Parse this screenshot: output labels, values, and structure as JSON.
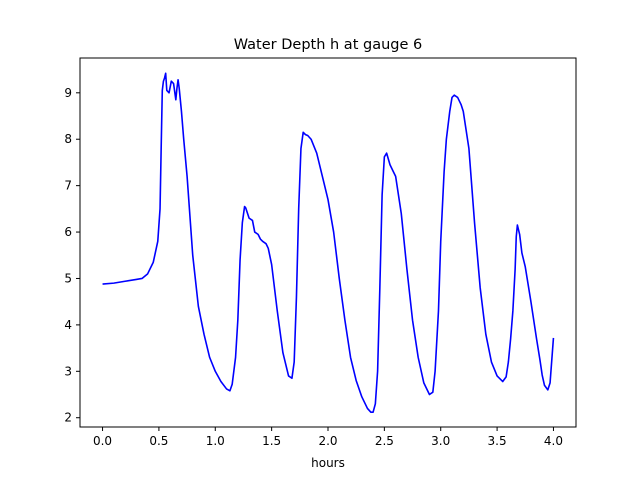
{
  "chart_data": {
    "type": "line",
    "title": "Water Depth h at gauge 6",
    "xlabel": "hours",
    "ylabel": "",
    "xlim": [
      -0.2,
      4.2
    ],
    "ylim": [
      1.8,
      9.75
    ],
    "xticks": [
      0.0,
      0.5,
      1.0,
      1.5,
      2.0,
      2.5,
      3.0,
      3.5,
      4.0
    ],
    "xtick_labels": [
      "0.0",
      "0.5",
      "1.0",
      "1.5",
      "2.0",
      "2.5",
      "3.0",
      "3.5",
      "4.0"
    ],
    "yticks": [
      2,
      3,
      4,
      5,
      6,
      7,
      8,
      9
    ],
    "ytick_labels": [
      "2",
      "3",
      "4",
      "5",
      "6",
      "7",
      "8",
      "9"
    ],
    "grid": false,
    "series": [
      {
        "color": "#0000ff",
        "x": [
          0.0,
          0.1,
          0.2,
          0.3,
          0.35,
          0.4,
          0.45,
          0.49,
          0.51,
          0.52,
          0.53,
          0.54,
          0.55,
          0.56,
          0.57,
          0.59,
          0.61,
          0.63,
          0.65,
          0.66,
          0.67,
          0.68,
          0.7,
          0.72,
          0.75,
          0.8,
          0.85,
          0.9,
          0.95,
          1.0,
          1.05,
          1.1,
          1.13,
          1.15,
          1.18,
          1.2,
          1.22,
          1.24,
          1.26,
          1.27,
          1.3,
          1.33,
          1.35,
          1.38,
          1.4,
          1.42,
          1.45,
          1.47,
          1.5,
          1.55,
          1.6,
          1.65,
          1.68,
          1.7,
          1.72,
          1.74,
          1.76,
          1.78,
          1.8,
          1.82,
          1.85,
          1.9,
          1.95,
          2.0,
          2.05,
          2.1,
          2.15,
          2.2,
          2.25,
          2.3,
          2.35,
          2.38,
          2.4,
          2.42,
          2.44,
          2.46,
          2.48,
          2.5,
          2.52,
          2.55,
          2.58,
          2.6,
          2.65,
          2.7,
          2.75,
          2.8,
          2.85,
          2.9,
          2.93,
          2.95,
          2.98,
          3.0,
          3.03,
          3.05,
          3.08,
          3.1,
          3.12,
          3.15,
          3.18,
          3.2,
          3.25,
          3.3,
          3.35,
          3.4,
          3.45,
          3.5,
          3.55,
          3.58,
          3.6,
          3.62,
          3.64,
          3.66,
          3.67,
          3.68,
          3.7,
          3.72,
          3.75,
          3.8,
          3.85,
          3.88,
          3.9,
          3.92,
          3.95,
          3.97,
          4.0
        ],
        "y": [
          4.88,
          4.9,
          4.94,
          4.98,
          5.0,
          5.1,
          5.35,
          5.8,
          6.5,
          7.8,
          9.05,
          9.25,
          9.32,
          9.42,
          9.05,
          9.0,
          9.25,
          9.2,
          8.85,
          9.1,
          9.28,
          9.1,
          8.6,
          8.0,
          7.2,
          5.5,
          4.4,
          3.8,
          3.3,
          3.0,
          2.78,
          2.62,
          2.58,
          2.72,
          3.3,
          4.1,
          5.4,
          6.2,
          6.55,
          6.52,
          6.3,
          6.25,
          6.0,
          5.95,
          5.85,
          5.8,
          5.75,
          5.65,
          5.3,
          4.3,
          3.4,
          2.9,
          2.85,
          3.2,
          4.6,
          6.5,
          7.8,
          8.15,
          8.1,
          8.08,
          8.0,
          7.7,
          7.2,
          6.7,
          6.0,
          5.0,
          4.1,
          3.3,
          2.8,
          2.45,
          2.2,
          2.12,
          2.12,
          2.3,
          3.0,
          4.8,
          6.8,
          7.62,
          7.7,
          7.45,
          7.3,
          7.2,
          6.4,
          5.2,
          4.1,
          3.3,
          2.75,
          2.5,
          2.55,
          3.0,
          4.3,
          5.8,
          7.3,
          8.0,
          8.6,
          8.9,
          8.95,
          8.9,
          8.75,
          8.6,
          7.8,
          6.2,
          4.8,
          3.8,
          3.2,
          2.9,
          2.78,
          2.88,
          3.2,
          3.7,
          4.3,
          5.2,
          5.9,
          6.15,
          5.95,
          5.55,
          5.25,
          4.5,
          3.7,
          3.25,
          2.92,
          2.7,
          2.6,
          2.75,
          3.72
        ]
      }
    ]
  }
}
